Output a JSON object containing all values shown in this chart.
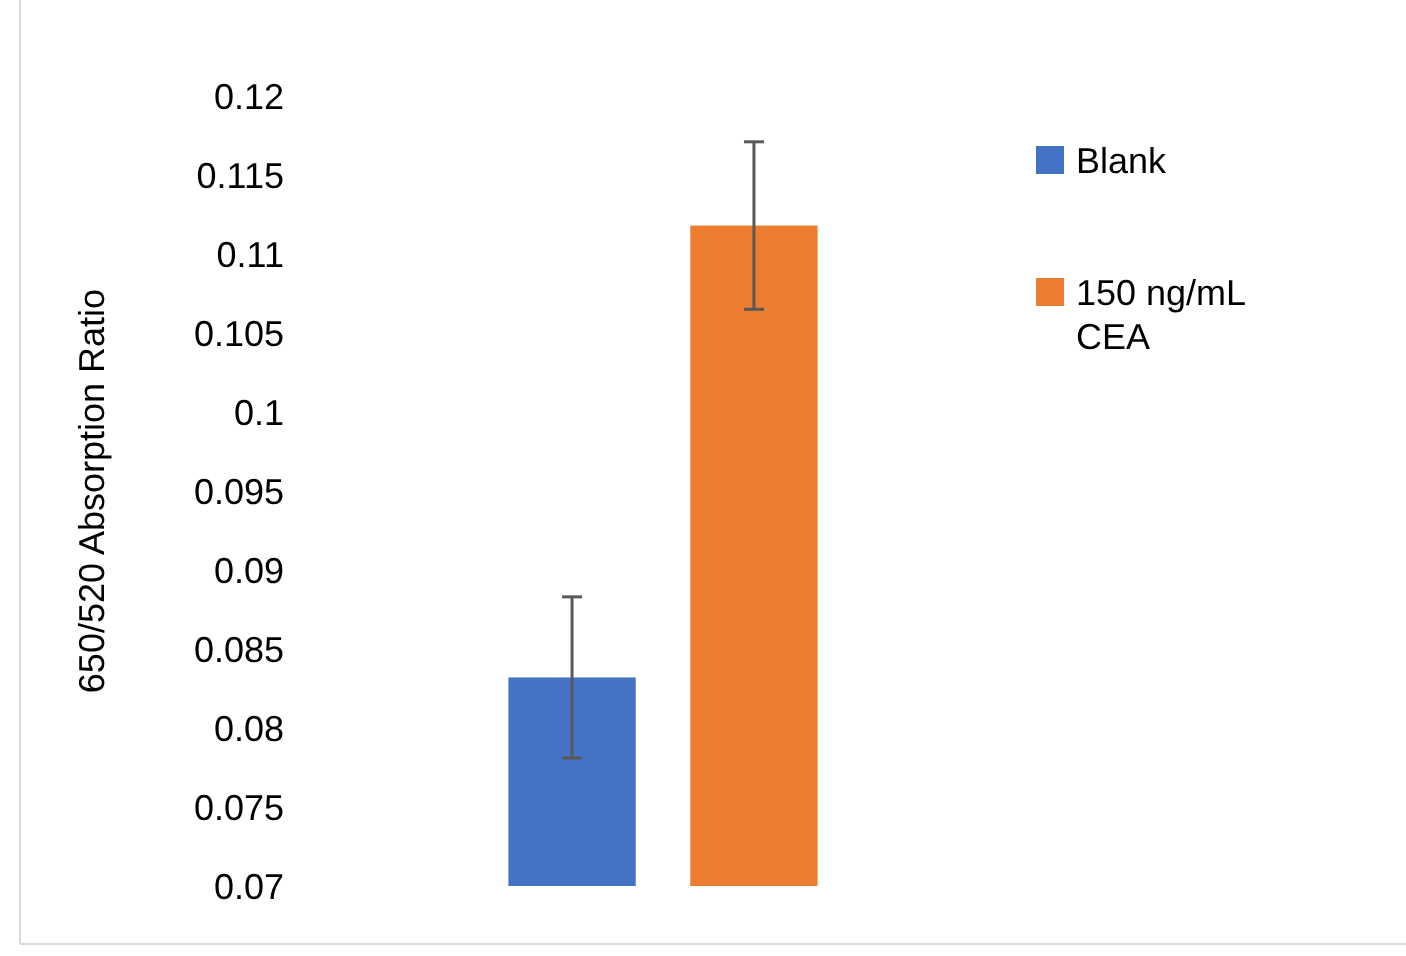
{
  "chart_data": {
    "type": "bar",
    "ylabel": "650/520 Absorption Ratio",
    "categories": [
      null
    ],
    "series": [
      {
        "name": "Blank",
        "color": "#4472c4",
        "values": [
          0.0832
        ],
        "errors": [
          0.0051
        ]
      },
      {
        "name": "150 ng/mL CEA",
        "color": "#ed7d31",
        "values": [
          0.1118
        ],
        "errors": [
          0.0053
        ]
      }
    ],
    "ylim": [
      0.07,
      0.12
    ],
    "yticks": [
      0.07,
      0.075,
      0.08,
      0.085,
      0.09,
      0.095,
      0.1,
      0.105,
      0.11,
      0.115,
      0.12
    ],
    "grid": false,
    "legend": "right"
  }
}
